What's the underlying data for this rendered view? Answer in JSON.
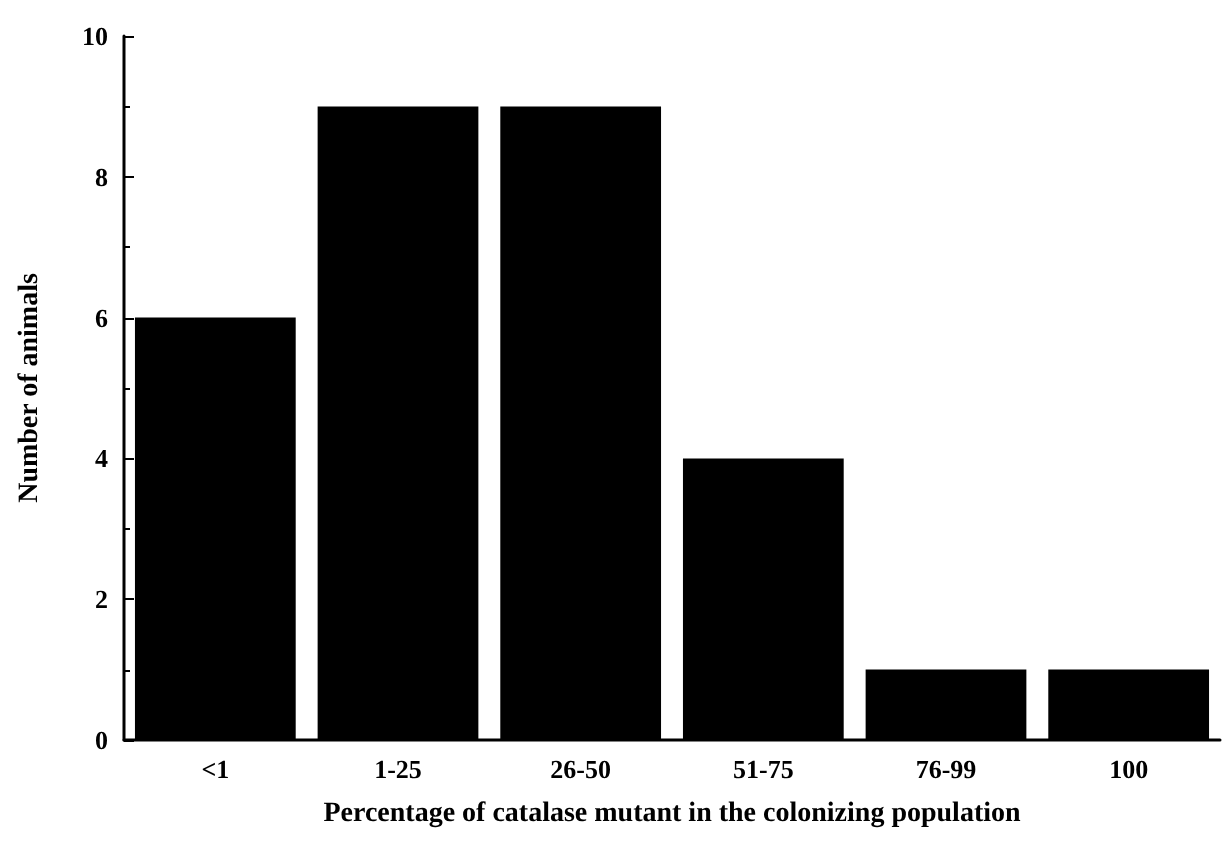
{
  "chart_data": {
    "type": "bar",
    "xlabel": "Percentage of catalase mutant in the colonizing population",
    "ylabel": "Number of animals",
    "categories": [
      "<1",
      "1-25",
      "26-50",
      "51-75",
      "76-99",
      "100"
    ],
    "values": [
      6,
      9,
      9,
      4,
      1,
      1
    ],
    "color": "#000000",
    "ylim": [
      0,
      10
    ],
    "yticks": [
      0,
      2,
      4,
      6,
      8,
      10
    ],
    "grid": false
  }
}
